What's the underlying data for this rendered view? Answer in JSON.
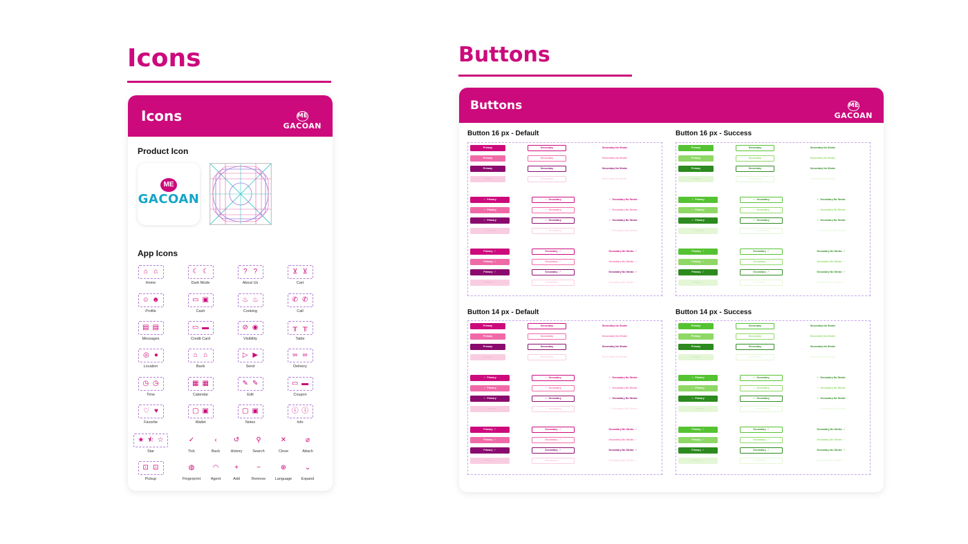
{
  "colors": {
    "brand": "#cc0a7c",
    "brand_light": "#f06aa8",
    "brand_dark": "#8a0a6e",
    "brand_disabled": "#f9cde1",
    "success": "#55c232",
    "success_light": "#8fd866",
    "success_dark": "#2c8a1e",
    "success_disabled": "#e4f6d6"
  },
  "icons_section": {
    "title": "Icons",
    "card_title": "Icons",
    "logo": {
      "me": "ME",
      "name": "GACOAN"
    },
    "product_icon_title": "Product Icon",
    "product_logo": {
      "me": "ME",
      "name": "GACOAN"
    },
    "app_icons_title": "App Icons",
    "icons": [
      {
        "label": "Home",
        "glyphs": [
          "⌂",
          "⌂"
        ],
        "icon_name": "home-icon"
      },
      {
        "label": "Dark Mode",
        "glyphs": [
          "☾",
          "☾"
        ],
        "icon_name": "dark-mode-icon"
      },
      {
        "label": "About Us",
        "glyphs": [
          "?",
          "?"
        ],
        "icon_name": "about-us-icon"
      },
      {
        "label": "Cart",
        "glyphs": [
          "⊻",
          "⊻"
        ],
        "icon_name": "cart-icon"
      },
      {
        "label": "Profile",
        "glyphs": [
          "☺",
          "☻"
        ],
        "icon_name": "profile-icon"
      },
      {
        "label": "Cash",
        "glyphs": [
          "▭",
          "▣"
        ],
        "icon_name": "cash-icon"
      },
      {
        "label": "Cooking",
        "glyphs": [
          "♨",
          "♨"
        ],
        "icon_name": "cooking-icon"
      },
      {
        "label": "Call",
        "glyphs": [
          "✆",
          "✆"
        ],
        "icon_name": "call-icon"
      },
      {
        "label": "Messages",
        "glyphs": [
          "▤",
          "▤"
        ],
        "icon_name": "messages-icon"
      },
      {
        "label": "Credit Card",
        "glyphs": [
          "▭",
          "▬"
        ],
        "icon_name": "credit-card-icon"
      },
      {
        "label": "Visibility",
        "glyphs": [
          "⊘",
          "◉"
        ],
        "icon_name": "visibility-icon"
      },
      {
        "label": "Table",
        "glyphs": [
          "╥",
          "╥"
        ],
        "icon_name": "table-icon"
      },
      {
        "label": "Location",
        "glyphs": [
          "◎",
          "●"
        ],
        "icon_name": "location-icon"
      },
      {
        "label": "Bank",
        "glyphs": [
          "⌂",
          "⌂"
        ],
        "icon_name": "bank-icon"
      },
      {
        "label": "Send",
        "glyphs": [
          "▷",
          "▶"
        ],
        "icon_name": "send-icon"
      },
      {
        "label": "Delivery",
        "glyphs": [
          "∞",
          "∞"
        ],
        "icon_name": "delivery-icon"
      },
      {
        "label": "Time",
        "glyphs": [
          "◷",
          "◷"
        ],
        "icon_name": "time-icon"
      },
      {
        "label": "Calendar",
        "glyphs": [
          "▦",
          "▦"
        ],
        "icon_name": "calendar-icon"
      },
      {
        "label": "Edit",
        "glyphs": [
          "✎",
          "✎"
        ],
        "icon_name": "edit-icon"
      },
      {
        "label": "Coupon",
        "glyphs": [
          "▭",
          "▬"
        ],
        "icon_name": "coupon-icon"
      },
      {
        "label": "Favorite",
        "glyphs": [
          "♡",
          "♥"
        ],
        "icon_name": "favorite-icon"
      },
      {
        "label": "Wallet",
        "glyphs": [
          "▢",
          "▣"
        ],
        "icon_name": "wallet-icon"
      },
      {
        "label": "Notes",
        "glyphs": [
          "▢",
          "▣"
        ],
        "icon_name": "notes-icon"
      },
      {
        "label": "Info",
        "glyphs": [
          "ⓘ",
          "ⓘ"
        ],
        "icon_name": "info-icon"
      },
      {
        "label": "Star",
        "glyphs": [
          "★",
          "⯪",
          "☆"
        ],
        "icon_name": "star-icon"
      },
      {
        "label": "Tick",
        "glyphs": [
          "✓"
        ],
        "icon_name": "tick-icon"
      },
      {
        "label": "Back",
        "glyphs": [
          "‹"
        ],
        "icon_name": "back-icon"
      },
      {
        "label": "History",
        "glyphs": [
          "↺"
        ],
        "icon_name": "history-icon"
      },
      {
        "label": "Search",
        "glyphs": [
          "⚲"
        ],
        "icon_name": "search-icon"
      },
      {
        "label": "Close",
        "glyphs": [
          "✕"
        ],
        "icon_name": "close-icon"
      },
      {
        "label": "Attach",
        "glyphs": [
          "⌀"
        ],
        "icon_name": "attach-icon"
      },
      {
        "label": "Pickup",
        "glyphs": [
          "⊡",
          "⊡"
        ],
        "icon_name": "pickup-icon"
      },
      {
        "label": "Fingerprint",
        "glyphs": [
          "◍"
        ],
        "icon_name": "fingerprint-icon"
      },
      {
        "label": "Agent",
        "glyphs": [
          "◠"
        ],
        "icon_name": "agent-icon"
      },
      {
        "label": "Add",
        "glyphs": [
          "+"
        ],
        "icon_name": "add-icon"
      },
      {
        "label": "Remove",
        "glyphs": [
          "−"
        ],
        "icon_name": "remove-icon"
      },
      {
        "label": "Language",
        "glyphs": [
          "⊕"
        ],
        "icon_name": "language-icon"
      },
      {
        "label": "Expand",
        "glyphs": [
          "⌄"
        ],
        "icon_name": "expand-icon"
      }
    ]
  },
  "buttons_section": {
    "title": "Buttons",
    "card_title": "Buttons",
    "logo": {
      "me": "ME",
      "name": "GACOAN"
    },
    "labels": {
      "primary": "Primary",
      "secondary": "Secondary",
      "ghost": "Secondary No Stroke",
      "check": "✓"
    },
    "groups": [
      {
        "title": "Button 16 px - Default",
        "variant": "default"
      },
      {
        "title": "Button 16 px - Success",
        "variant": "success"
      },
      {
        "title": "Button 14 px - Default",
        "variant": "default"
      },
      {
        "title": "Button 14 px - Success",
        "variant": "success"
      }
    ]
  }
}
